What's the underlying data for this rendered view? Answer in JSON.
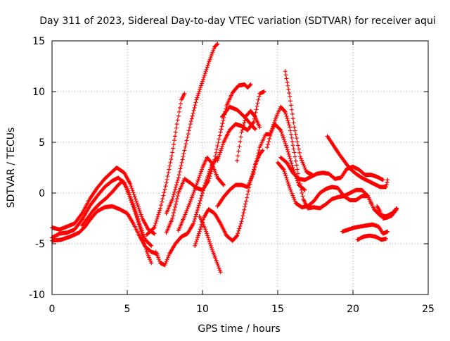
{
  "chart_data": {
    "type": "scatter",
    "title": "Day 311 of 2023, Sidereal Day-to-day VTEC variation (SDTVAR) for receiver aqui",
    "xlabel": "GPS time / hours",
    "ylabel": "SDTVAR / TECUs",
    "xlim": [
      0,
      25
    ],
    "ylim": [
      -10,
      15
    ],
    "xticks": [
      0,
      5,
      10,
      15,
      20,
      25
    ],
    "yticks": [
      -10,
      -5,
      0,
      5,
      10,
      15
    ],
    "xtick_labels": [
      "0",
      "5",
      "10",
      "15",
      "20",
      "25"
    ],
    "ytick_labels": [
      "-10",
      "-5",
      "0",
      "5",
      "10",
      "15"
    ],
    "grid": true,
    "marker": "+",
    "color": "#ff0000",
    "series": [
      {
        "name": "track-01",
        "points": [
          [
            0.0,
            -4.4
          ],
          [
            0.5,
            -4.0
          ],
          [
            1.0,
            -3.9
          ],
          [
            1.5,
            -3.6
          ],
          [
            2.0,
            -2.6
          ],
          [
            2.5,
            -1.3
          ],
          [
            3.0,
            -0.3
          ],
          [
            3.5,
            0.6
          ],
          [
            4.0,
            1.2
          ],
          [
            4.4,
            1.5
          ],
          [
            4.8,
            1.0
          ],
          [
            5.2,
            -0.5
          ],
          [
            5.6,
            -2.2
          ],
          [
            6.0,
            -4.2
          ],
          [
            6.3,
            -5.8
          ],
          [
            6.6,
            -6.9
          ]
        ]
      },
      {
        "name": "track-02",
        "points": [
          [
            0.0,
            -3.4
          ],
          [
            0.5,
            -3.6
          ],
          [
            1.0,
            -3.3
          ],
          [
            1.5,
            -3.0
          ],
          [
            2.0,
            -2.0
          ],
          [
            2.5,
            -0.6
          ],
          [
            3.0,
            0.5
          ],
          [
            3.5,
            1.4
          ],
          [
            4.0,
            2.1
          ],
          [
            4.3,
            2.5
          ],
          [
            4.8,
            2.0
          ],
          [
            5.2,
            0.9
          ],
          [
            5.6,
            -0.8
          ],
          [
            6.0,
            -2.5
          ],
          [
            6.4,
            -3.6
          ],
          [
            6.8,
            -4.0
          ]
        ]
      },
      {
        "name": "track-03",
        "points": [
          [
            0.0,
            -4.7
          ],
          [
            0.6,
            -4.6
          ],
          [
            1.2,
            -4.3
          ],
          [
            1.8,
            -3.9
          ],
          [
            2.2,
            -3.3
          ],
          [
            2.6,
            -2.5
          ],
          [
            3.0,
            -1.8
          ],
          [
            3.5,
            -1.4
          ],
          [
            4.0,
            -1.3
          ],
          [
            4.5,
            -1.6
          ],
          [
            5.0,
            -2.0
          ],
          [
            5.4,
            -3.0
          ],
          [
            5.8,
            -4.2
          ],
          [
            6.2,
            -5.3
          ],
          [
            6.6,
            -5.8
          ],
          [
            7.0,
            -6.0
          ]
        ]
      },
      {
        "name": "track-04",
        "points": [
          [
            2.0,
            -3.2
          ],
          [
            2.4,
            -2.4
          ],
          [
            2.8,
            -1.6
          ],
          [
            3.2,
            -1.0
          ],
          [
            3.6,
            -0.5
          ],
          [
            4.0,
            0.1
          ],
          [
            4.4,
            0.8
          ],
          [
            4.7,
            1.2
          ],
          [
            5.0,
            0.4
          ],
          [
            5.4,
            -1.2
          ],
          [
            5.8,
            -3.0
          ],
          [
            6.2,
            -4.6
          ],
          [
            6.6,
            -5.2
          ]
        ]
      },
      {
        "name": "track-05",
        "points": [
          [
            6.9,
            -5.8
          ],
          [
            7.2,
            -6.9
          ],
          [
            7.5,
            -7.1
          ],
          [
            7.8,
            -6.0
          ],
          [
            8.2,
            -5.0
          ],
          [
            8.6,
            -4.3
          ],
          [
            9.0,
            -4.0
          ],
          [
            9.4,
            -3.0
          ],
          [
            9.8,
            -1.0
          ],
          [
            10.2,
            1.0
          ],
          [
            10.6,
            2.7
          ],
          [
            11.0,
            3.5
          ]
        ]
      },
      {
        "name": "track-06",
        "points": [
          [
            6.3,
            -4.1
          ],
          [
            6.8,
            -3.4
          ],
          [
            7.2,
            -1.5
          ],
          [
            7.6,
            1.0
          ],
          [
            8.0,
            4.0
          ],
          [
            8.3,
            6.8
          ],
          [
            8.6,
            9.2
          ],
          [
            8.8,
            9.8
          ]
        ]
      },
      {
        "name": "track-07",
        "points": [
          [
            7.6,
            -2.0
          ],
          [
            8.0,
            -0.6
          ],
          [
            8.4,
            1.5
          ],
          [
            8.8,
            4.2
          ],
          [
            9.2,
            6.8
          ],
          [
            9.6,
            9.2
          ],
          [
            10.0,
            11.0
          ],
          [
            10.4,
            12.8
          ],
          [
            10.8,
            14.4
          ],
          [
            11.0,
            14.7
          ]
        ]
      },
      {
        "name": "track-08",
        "points": [
          [
            8.4,
            -3.7
          ],
          [
            8.8,
            -2.3
          ],
          [
            9.2,
            -0.8
          ],
          [
            9.6,
            0.8
          ],
          [
            10.0,
            2.5
          ],
          [
            10.3,
            3.5
          ],
          [
            10.6,
            3.0
          ],
          [
            11.0,
            1.5
          ],
          [
            11.4,
            0.8
          ]
        ]
      },
      {
        "name": "track-09",
        "points": [
          [
            7.6,
            -3.9
          ],
          [
            8.0,
            -2.5
          ],
          [
            8.4,
            0.0
          ],
          [
            8.8,
            1.4
          ],
          [
            9.2,
            1.0
          ],
          [
            9.6,
            0.5
          ],
          [
            10.0,
            0.3
          ],
          [
            10.4,
            1.2
          ],
          [
            10.8,
            3.3
          ],
          [
            11.2,
            6.0
          ],
          [
            11.6,
            8.6
          ],
          [
            12.0,
            9.9
          ],
          [
            12.4,
            10.6
          ],
          [
            12.8,
            10.7
          ],
          [
            13.0,
            10.4
          ],
          [
            13.2,
            10.7
          ]
        ]
      },
      {
        "name": "track-10",
        "points": [
          [
            9.8,
            -2.3
          ],
          [
            10.2,
            -3.6
          ],
          [
            10.6,
            -5.4
          ],
          [
            11.0,
            -7.0
          ],
          [
            11.2,
            -7.8
          ]
        ]
      },
      {
        "name": "track-11",
        "points": [
          [
            9.5,
            -5.2
          ],
          [
            9.8,
            -3.8
          ],
          [
            10.1,
            -2.4
          ],
          [
            10.4,
            -1.6
          ],
          [
            10.8,
            -2.0
          ],
          [
            11.2,
            -3.0
          ],
          [
            11.6,
            -4.2
          ],
          [
            12.0,
            -4.7
          ],
          [
            12.3,
            -4.2
          ],
          [
            12.6,
            -2.8
          ],
          [
            12.9,
            -0.8
          ],
          [
            13.2,
            1.2
          ],
          [
            13.5,
            2.8
          ],
          [
            13.8,
            3.8
          ],
          [
            14.0,
            4.2
          ]
        ]
      },
      {
        "name": "track-12",
        "points": [
          [
            11.0,
            -1.3
          ],
          [
            11.4,
            -0.4
          ],
          [
            11.8,
            0.3
          ],
          [
            12.2,
            0.8
          ],
          [
            12.6,
            0.8
          ],
          [
            13.0,
            0.6
          ],
          [
            13.4,
            2.0
          ],
          [
            13.8,
            4.5
          ],
          [
            14.2,
            5.8
          ],
          [
            14.5,
            5.8
          ],
          [
            14.8,
            6.8
          ],
          [
            15.2,
            6.2
          ],
          [
            15.6,
            4.5
          ],
          [
            16.0,
            2.5
          ],
          [
            16.4,
            0.8
          ],
          [
            16.8,
            0.3
          ]
        ]
      },
      {
        "name": "track-13",
        "points": [
          [
            11.0,
            3.2
          ],
          [
            11.4,
            5.0
          ],
          [
            11.8,
            6.2
          ],
          [
            12.2,
            6.8
          ],
          [
            12.6,
            6.6
          ],
          [
            13.0,
            6.2
          ],
          [
            13.4,
            7.0
          ],
          [
            13.8,
            9.8
          ],
          [
            14.1,
            10.0
          ]
        ]
      },
      {
        "name": "track-14",
        "points": [
          [
            11.3,
            7.5
          ],
          [
            11.8,
            8.5
          ],
          [
            12.3,
            8.2
          ],
          [
            12.8,
            7.5
          ],
          [
            13.2,
            6.8
          ],
          [
            13.5,
            6.3
          ]
        ]
      },
      {
        "name": "track-15",
        "points": [
          [
            12.3,
            3.2
          ],
          [
            12.6,
            6.0
          ],
          [
            12.9,
            7.6
          ],
          [
            13.2,
            8.1
          ],
          [
            13.5,
            7.5
          ],
          [
            13.8,
            6.5
          ]
        ]
      },
      {
        "name": "track-16",
        "points": [
          [
            14.3,
            4.5
          ],
          [
            14.6,
            6.2
          ],
          [
            14.9,
            7.5
          ],
          [
            15.2,
            8.5
          ],
          [
            15.5,
            8.0
          ],
          [
            15.8,
            6.5
          ],
          [
            16.1,
            4.0
          ],
          [
            16.4,
            1.5
          ],
          [
            16.7,
            -0.6
          ],
          [
            17.0,
            -1.5
          ],
          [
            17.4,
            -1.4
          ],
          [
            17.8,
            -1.5
          ],
          [
            18.2,
            -1.1
          ],
          [
            18.6,
            -0.6
          ],
          [
            19.0,
            -0.4
          ],
          [
            19.4,
            -0.3
          ],
          [
            19.8,
            0.0
          ],
          [
            20.2,
            0.3
          ],
          [
            20.6,
            0.3
          ],
          [
            21.0,
            -0.3
          ],
          [
            21.4,
            -1.6
          ],
          [
            21.8,
            -2.2
          ],
          [
            22.2,
            -2.3
          ],
          [
            22.6,
            -2.0
          ],
          [
            22.9,
            -1.5
          ]
        ]
      },
      {
        "name": "track-17",
        "points": [
          [
            15.0,
            3.0
          ],
          [
            15.4,
            2.3
          ],
          [
            15.8,
            0.5
          ],
          [
            16.2,
            -1.0
          ],
          [
            16.6,
            -1.4
          ],
          [
            17.0,
            -1.3
          ],
          [
            17.4,
            -0.8
          ],
          [
            17.8,
            0.0
          ],
          [
            18.2,
            0.4
          ],
          [
            18.6,
            0.6
          ],
          [
            19.0,
            0.5
          ],
          [
            19.4,
            -0.3
          ],
          [
            19.8,
            -0.7
          ],
          [
            20.2,
            -0.7
          ],
          [
            20.6,
            -0.3
          ],
          [
            21.0,
            -0.3
          ],
          [
            21.2,
            -1.0
          ]
        ]
      },
      {
        "name": "track-18",
        "points": [
          [
            15.2,
            3.5
          ],
          [
            15.6,
            3.0
          ],
          [
            16.0,
            2.0
          ],
          [
            16.4,
            1.4
          ],
          [
            16.8,
            1.3
          ],
          [
            17.2,
            1.6
          ],
          [
            17.6,
            1.9
          ],
          [
            18.0,
            2.0
          ],
          [
            18.4,
            1.9
          ],
          [
            18.8,
            1.4
          ],
          [
            19.2,
            1.5
          ],
          [
            19.6,
            2.4
          ],
          [
            20.0,
            2.6
          ],
          [
            20.4,
            2.3
          ],
          [
            20.8,
            1.8
          ],
          [
            21.2,
            1.8
          ],
          [
            21.6,
            1.6
          ],
          [
            22.0,
            1.3
          ]
        ]
      },
      {
        "name": "track-19",
        "points": [
          [
            15.5,
            12.0
          ],
          [
            15.8,
            9.5
          ],
          [
            16.1,
            6.5
          ],
          [
            16.5,
            3.6
          ],
          [
            16.9,
            2.1
          ],
          [
            17.3,
            1.8
          ]
        ]
      },
      {
        "name": "track-20",
        "points": [
          [
            18.3,
            5.6
          ],
          [
            18.7,
            4.7
          ],
          [
            19.1,
            3.8
          ],
          [
            19.5,
            3.0
          ],
          [
            19.8,
            2.4
          ],
          [
            20.2,
            1.9
          ],
          [
            20.6,
            1.5
          ],
          [
            21.0,
            1.2
          ],
          [
            21.4,
            0.9
          ],
          [
            21.8,
            0.6
          ],
          [
            22.2,
            0.6
          ],
          [
            22.3,
            1.3
          ]
        ]
      },
      {
        "name": "track-21",
        "points": [
          [
            19.3,
            -3.8
          ],
          [
            19.7,
            -3.6
          ],
          [
            20.1,
            -3.4
          ],
          [
            20.5,
            -3.3
          ],
          [
            20.9,
            -3.2
          ],
          [
            21.3,
            -3.1
          ],
          [
            21.7,
            -3.3
          ],
          [
            22.0,
            -4.0
          ],
          [
            22.3,
            -3.8
          ]
        ]
      },
      {
        "name": "track-22",
        "points": [
          [
            20.3,
            -4.6
          ],
          [
            20.7,
            -4.3
          ],
          [
            21.1,
            -4.2
          ],
          [
            21.5,
            -4.3
          ],
          [
            21.9,
            -4.6
          ],
          [
            22.2,
            -4.5
          ]
        ]
      },
      {
        "name": "track-23",
        "points": [
          [
            21.6,
            -1.3
          ],
          [
            21.8,
            -1.8
          ],
          [
            22.0,
            -2.5
          ],
          [
            22.3,
            -2.4
          ],
          [
            22.6,
            -2.2
          ],
          [
            22.9,
            -1.6
          ]
        ]
      }
    ]
  }
}
